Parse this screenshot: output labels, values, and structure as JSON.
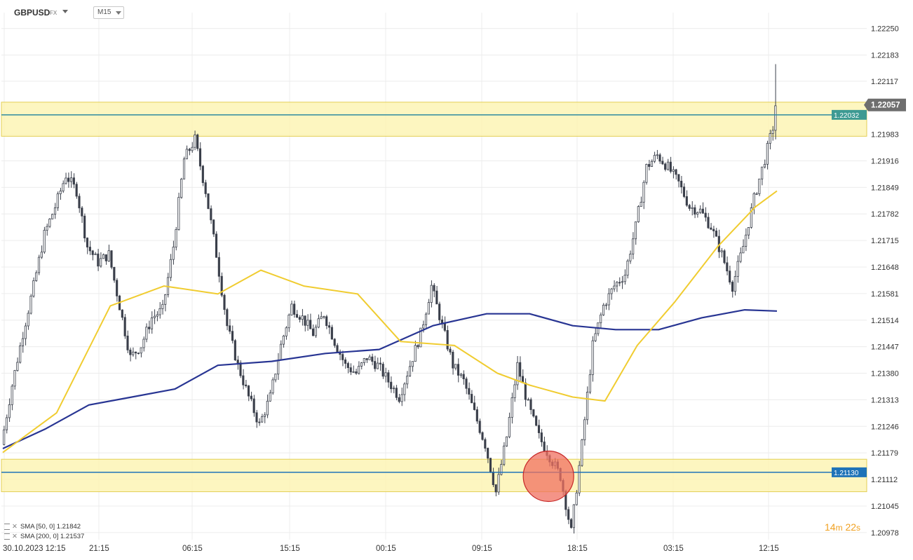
{
  "header": {
    "symbol": "GBPUSD",
    "market": "FX",
    "timeframe": "M15"
  },
  "indicators": [
    {
      "label": "SMA [50, 0] 1.21842",
      "color": "#f0cc30"
    },
    {
      "label": "SMA [200, 0] 1.21537",
      "color": "#283593"
    }
  ],
  "countdown": {
    "minutes": "14",
    "m_unit": "m",
    "seconds": "22",
    "s_unit": "s"
  },
  "chart_data": {
    "type": "candlestick",
    "symbol": "GBPUSD",
    "timeframe": "M15",
    "y_ticks": [
      "1.22250",
      "1.22183",
      "1.22117",
      "1.21983",
      "1.21916",
      "1.21849",
      "1.21782",
      "1.21715",
      "1.21648",
      "1.21581",
      "1.21514",
      "1.21447",
      "1.21380",
      "1.21313",
      "1.21246",
      "1.21179",
      "1.21112",
      "1.21045",
      "1.20978"
    ],
    "x_ticks": [
      "30.10.2023  12:15",
      "21:15",
      "06:15",
      "15:15",
      "00:15",
      "09:15",
      "18:15",
      "03:15",
      "12:15"
    ],
    "ylim": [
      1.2096,
      1.2229
    ],
    "last_price": "1.22057",
    "zones": [
      {
        "name": "resistance",
        "low": 1.21978,
        "high": 1.22064,
        "level": 1.22032,
        "level_label": "1.22032"
      },
      {
        "name": "support",
        "low": 1.21081,
        "high": 1.21163,
        "level": 1.2113,
        "level_label": "1.21130"
      }
    ],
    "path": [
      [
        0,
        1.212
      ],
      [
        4,
        1.2135
      ],
      [
        8,
        1.2148
      ],
      [
        12,
        1.216
      ],
      [
        16,
        1.2173
      ],
      [
        20,
        1.218
      ],
      [
        24,
        1.2188
      ],
      [
        28,
        1.2184
      ],
      [
        32,
        1.217
      ],
      [
        36,
        1.2166
      ],
      [
        40,
        1.2168
      ],
      [
        44,
        1.2155
      ],
      [
        48,
        1.2142
      ],
      [
        52,
        1.2145
      ],
      [
        56,
        1.2152
      ],
      [
        60,
        1.2154
      ],
      [
        64,
        1.217
      ],
      [
        68,
        1.2192
      ],
      [
        72,
        1.2197
      ],
      [
        76,
        1.2184
      ],
      [
        80,
        1.2168
      ],
      [
        84,
        1.215
      ],
      [
        88,
        1.214
      ],
      [
        92,
        1.2132
      ],
      [
        96,
        1.2125
      ],
      [
        100,
        1.2132
      ],
      [
        104,
        1.2145
      ],
      [
        108,
        1.2155
      ],
      [
        112,
        1.2152
      ],
      [
        116,
        1.2148
      ],
      [
        120,
        1.2153
      ],
      [
        124,
        1.2146
      ],
      [
        128,
        1.214
      ],
      [
        132,
        1.2138
      ],
      [
        136,
        1.2142
      ],
      [
        140,
        1.214
      ],
      [
        144,
        1.2136
      ],
      [
        148,
        1.2132
      ],
      [
        152,
        1.214
      ],
      [
        156,
        1.2148
      ],
      [
        160,
        1.216
      ],
      [
        164,
        1.215
      ],
      [
        168,
        1.214
      ],
      [
        172,
        1.2136
      ],
      [
        176,
        1.2128
      ],
      [
        180,
        1.212
      ],
      [
        184,
        1.2108
      ],
      [
        188,
        1.2122
      ],
      [
        192,
        1.214
      ],
      [
        196,
        1.213
      ],
      [
        200,
        1.2122
      ],
      [
        204,
        1.2117
      ],
      [
        208,
        1.2112
      ],
      [
        212,
        1.2098
      ],
      [
        216,
        1.212
      ],
      [
        220,
        1.2145
      ],
      [
        224,
        1.2155
      ],
      [
        228,
        1.216
      ],
      [
        232,
        1.2163
      ],
      [
        236,
        1.2175
      ],
      [
        240,
        1.219
      ],
      [
        244,
        1.2193
      ],
      [
        248,
        1.219
      ],
      [
        252,
        1.2186
      ],
      [
        256,
        1.218
      ],
      [
        260,
        1.2179
      ],
      [
        264,
        1.2175
      ],
      [
        268,
        1.2168
      ],
      [
        272,
        1.216
      ],
      [
        276,
        1.217
      ],
      [
        280,
        1.2182
      ],
      [
        284,
        1.2192
      ],
      [
        287,
        1.22
      ],
      [
        288,
        1.22057
      ]
    ],
    "sma50_path": [
      [
        0,
        1.2118
      ],
      [
        20,
        1.2128
      ],
      [
        40,
        1.2155
      ],
      [
        60,
        1.216
      ],
      [
        80,
        1.2158
      ],
      [
        96,
        1.2164
      ],
      [
        112,
        1.216
      ],
      [
        132,
        1.2158
      ],
      [
        148,
        1.2146
      ],
      [
        168,
        1.2145
      ],
      [
        184,
        1.2138
      ],
      [
        196,
        1.2135
      ],
      [
        212,
        1.2132
      ],
      [
        224,
        1.2131
      ],
      [
        236,
        1.2145
      ],
      [
        250,
        1.2156
      ],
      [
        266,
        1.217
      ],
      [
        280,
        1.218
      ],
      [
        288,
        1.2184
      ]
    ],
    "sma200_path": [
      [
        0,
        1.2119
      ],
      [
        16,
        1.2124
      ],
      [
        32,
        1.213
      ],
      [
        48,
        1.2132
      ],
      [
        64,
        1.2134
      ],
      [
        80,
        1.214
      ],
      [
        100,
        1.2141
      ],
      [
        120,
        1.2143
      ],
      [
        140,
        1.2144
      ],
      [
        160,
        1.215
      ],
      [
        180,
        1.2153
      ],
      [
        196,
        1.2153
      ],
      [
        212,
        1.215
      ],
      [
        228,
        1.2149
      ],
      [
        244,
        1.2149
      ],
      [
        260,
        1.2152
      ],
      [
        276,
        1.2154
      ],
      [
        288,
        1.21537
      ]
    ],
    "bars": 288,
    "highlight": {
      "shape": "circle",
      "center_price": 1.2112,
      "center_bar": 203
    },
    "grid": true
  }
}
